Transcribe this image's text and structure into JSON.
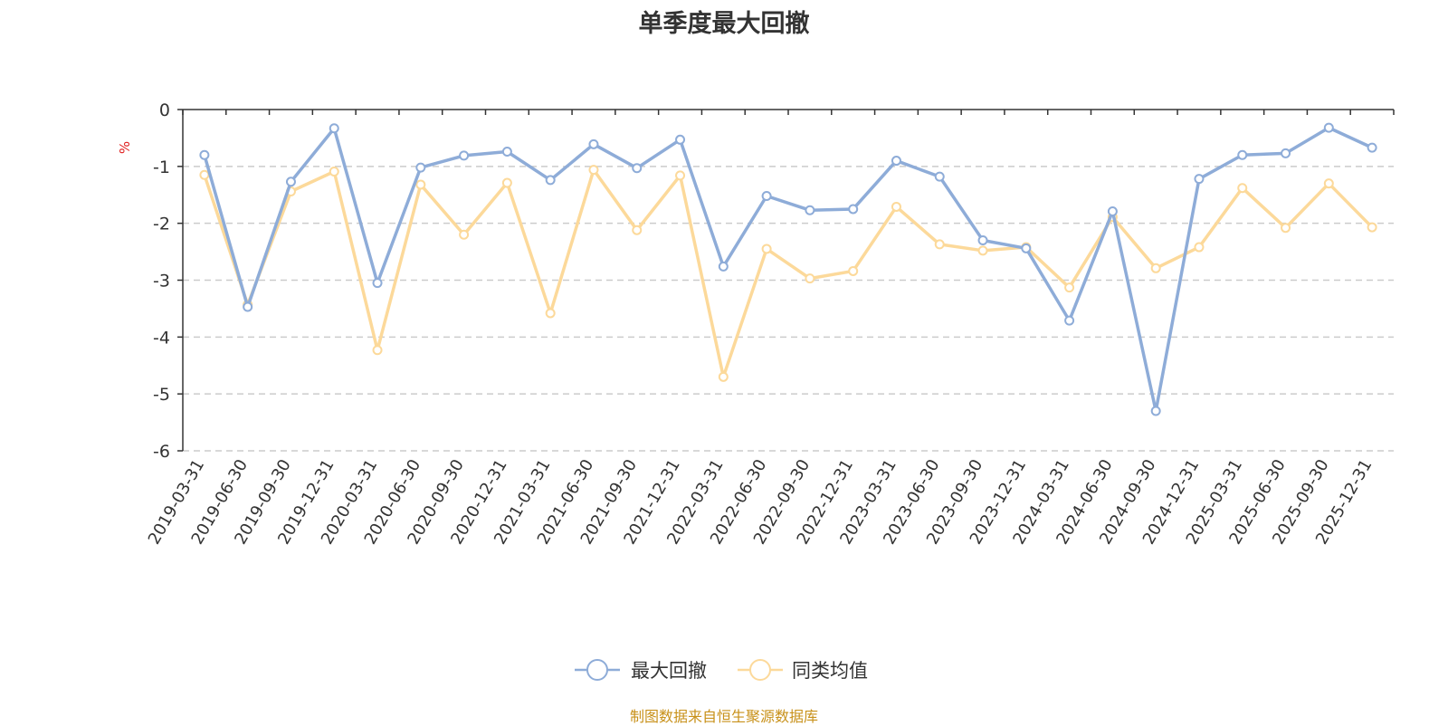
{
  "chart_data": {
    "type": "line",
    "title": "单季度最大回撤",
    "ylabel": "%",
    "ylim": [
      -6,
      0
    ],
    "yticks": [
      0,
      -1,
      -2,
      -3,
      -4,
      -5,
      -6
    ],
    "grid": true,
    "legend_position": "bottom",
    "x": [
      "2019-03-31",
      "2019-06-30",
      "2019-09-30",
      "2019-12-31",
      "2020-03-31",
      "2020-06-30",
      "2020-09-30",
      "2020-12-31",
      "2021-03-31",
      "2021-06-30",
      "2021-09-30",
      "2021-12-31",
      "2022-03-31",
      "2022-06-30",
      "2022-09-30",
      "2022-12-31",
      "2023-03-31",
      "2023-06-30",
      "2023-09-30",
      "2023-12-31",
      "2024-03-31",
      "2024-06-30",
      "2024-09-30",
      "2024-12-31",
      "2025-03-31",
      "2025-06-30",
      "2025-09-30",
      "2025-12-31"
    ],
    "series": [
      {
        "name": "最大回撤",
        "color": "#8eacd8",
        "values": [
          -0.8,
          -3.47,
          -1.27,
          -0.33,
          -3.05,
          -1.02,
          -0.81,
          -0.74,
          -1.24,
          -0.61,
          -1.03,
          -0.53,
          -2.76,
          -1.52,
          -1.77,
          -1.75,
          -0.9,
          -1.18,
          -2.3,
          -2.44,
          -3.71,
          -1.79,
          -5.3,
          -1.22,
          -0.8,
          -0.77,
          -0.32,
          -0.67
        ]
      },
      {
        "name": "同类均值",
        "color": "#fcd99a",
        "values": [
          -1.15,
          -3.43,
          -1.44,
          -1.09,
          -4.23,
          -1.32,
          -2.2,
          -1.29,
          -3.58,
          -1.06,
          -2.12,
          -1.16,
          -4.7,
          -2.45,
          -2.97,
          -2.84,
          -1.71,
          -2.37,
          -2.48,
          -2.42,
          -3.13,
          -1.89,
          -2.79,
          -2.42,
          -1.38,
          -2.08,
          -1.3,
          -2.07
        ]
      }
    ]
  },
  "credit": "制图数据来自恒生聚源数据库"
}
